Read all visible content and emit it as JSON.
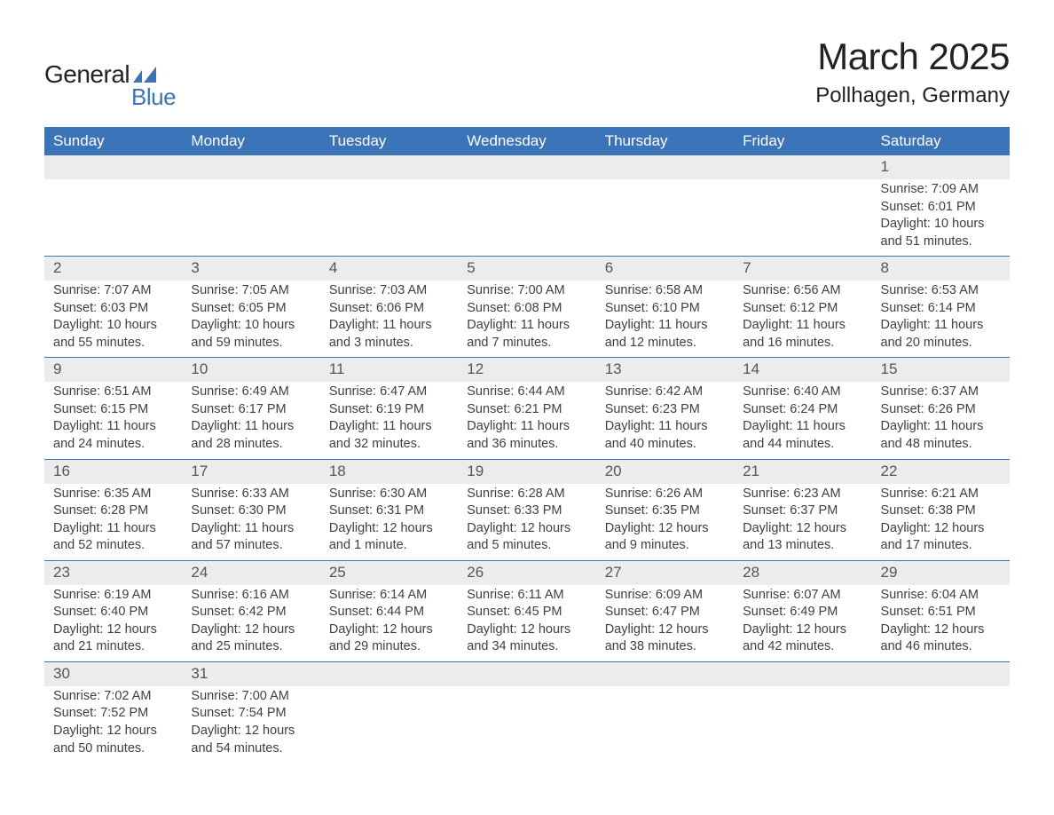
{
  "logo": {
    "text_general": "General",
    "text_blue": "Blue",
    "mark_color": "#3b74b9",
    "text_dark": "#222222"
  },
  "title": {
    "month": "March 2025",
    "location": "Pollhagen, Germany"
  },
  "styling": {
    "header_bg": "#3b74b9",
    "header_fg": "#ffffff",
    "row_border": "#3b74b9",
    "daynum_bg": "#ececec",
    "daynum_fg": "#555555",
    "body_fg": "#404040",
    "page_bg": "#ffffff",
    "font_family": "Arial, Helvetica, sans-serif",
    "month_title_fontsize": 42,
    "location_fontsize": 24,
    "th_fontsize": 17,
    "cell_fontsize": 14.5,
    "daynum_fontsize": 17
  },
  "weekdays": [
    "Sunday",
    "Monday",
    "Tuesday",
    "Wednesday",
    "Thursday",
    "Friday",
    "Saturday"
  ],
  "weeks": [
    [
      {
        "empty": true
      },
      {
        "empty": true
      },
      {
        "empty": true
      },
      {
        "empty": true
      },
      {
        "empty": true
      },
      {
        "empty": true
      },
      {
        "day": "1",
        "sunrise": "Sunrise: 7:09 AM",
        "sunset": "Sunset: 6:01 PM",
        "daylight": "Daylight: 10 hours and 51 minutes."
      }
    ],
    [
      {
        "day": "2",
        "sunrise": "Sunrise: 7:07 AM",
        "sunset": "Sunset: 6:03 PM",
        "daylight": "Daylight: 10 hours and 55 minutes."
      },
      {
        "day": "3",
        "sunrise": "Sunrise: 7:05 AM",
        "sunset": "Sunset: 6:05 PM",
        "daylight": "Daylight: 10 hours and 59 minutes."
      },
      {
        "day": "4",
        "sunrise": "Sunrise: 7:03 AM",
        "sunset": "Sunset: 6:06 PM",
        "daylight": "Daylight: 11 hours and 3 minutes."
      },
      {
        "day": "5",
        "sunrise": "Sunrise: 7:00 AM",
        "sunset": "Sunset: 6:08 PM",
        "daylight": "Daylight: 11 hours and 7 minutes."
      },
      {
        "day": "6",
        "sunrise": "Sunrise: 6:58 AM",
        "sunset": "Sunset: 6:10 PM",
        "daylight": "Daylight: 11 hours and 12 minutes."
      },
      {
        "day": "7",
        "sunrise": "Sunrise: 6:56 AM",
        "sunset": "Sunset: 6:12 PM",
        "daylight": "Daylight: 11 hours and 16 minutes."
      },
      {
        "day": "8",
        "sunrise": "Sunrise: 6:53 AM",
        "sunset": "Sunset: 6:14 PM",
        "daylight": "Daylight: 11 hours and 20 minutes."
      }
    ],
    [
      {
        "day": "9",
        "sunrise": "Sunrise: 6:51 AM",
        "sunset": "Sunset: 6:15 PM",
        "daylight": "Daylight: 11 hours and 24 minutes."
      },
      {
        "day": "10",
        "sunrise": "Sunrise: 6:49 AM",
        "sunset": "Sunset: 6:17 PM",
        "daylight": "Daylight: 11 hours and 28 minutes."
      },
      {
        "day": "11",
        "sunrise": "Sunrise: 6:47 AM",
        "sunset": "Sunset: 6:19 PM",
        "daylight": "Daylight: 11 hours and 32 minutes."
      },
      {
        "day": "12",
        "sunrise": "Sunrise: 6:44 AM",
        "sunset": "Sunset: 6:21 PM",
        "daylight": "Daylight: 11 hours and 36 minutes."
      },
      {
        "day": "13",
        "sunrise": "Sunrise: 6:42 AM",
        "sunset": "Sunset: 6:23 PM",
        "daylight": "Daylight: 11 hours and 40 minutes."
      },
      {
        "day": "14",
        "sunrise": "Sunrise: 6:40 AM",
        "sunset": "Sunset: 6:24 PM",
        "daylight": "Daylight: 11 hours and 44 minutes."
      },
      {
        "day": "15",
        "sunrise": "Sunrise: 6:37 AM",
        "sunset": "Sunset: 6:26 PM",
        "daylight": "Daylight: 11 hours and 48 minutes."
      }
    ],
    [
      {
        "day": "16",
        "sunrise": "Sunrise: 6:35 AM",
        "sunset": "Sunset: 6:28 PM",
        "daylight": "Daylight: 11 hours and 52 minutes."
      },
      {
        "day": "17",
        "sunrise": "Sunrise: 6:33 AM",
        "sunset": "Sunset: 6:30 PM",
        "daylight": "Daylight: 11 hours and 57 minutes."
      },
      {
        "day": "18",
        "sunrise": "Sunrise: 6:30 AM",
        "sunset": "Sunset: 6:31 PM",
        "daylight": "Daylight: 12 hours and 1 minute."
      },
      {
        "day": "19",
        "sunrise": "Sunrise: 6:28 AM",
        "sunset": "Sunset: 6:33 PM",
        "daylight": "Daylight: 12 hours and 5 minutes."
      },
      {
        "day": "20",
        "sunrise": "Sunrise: 6:26 AM",
        "sunset": "Sunset: 6:35 PM",
        "daylight": "Daylight: 12 hours and 9 minutes."
      },
      {
        "day": "21",
        "sunrise": "Sunrise: 6:23 AM",
        "sunset": "Sunset: 6:37 PM",
        "daylight": "Daylight: 12 hours and 13 minutes."
      },
      {
        "day": "22",
        "sunrise": "Sunrise: 6:21 AM",
        "sunset": "Sunset: 6:38 PM",
        "daylight": "Daylight: 12 hours and 17 minutes."
      }
    ],
    [
      {
        "day": "23",
        "sunrise": "Sunrise: 6:19 AM",
        "sunset": "Sunset: 6:40 PM",
        "daylight": "Daylight: 12 hours and 21 minutes."
      },
      {
        "day": "24",
        "sunrise": "Sunrise: 6:16 AM",
        "sunset": "Sunset: 6:42 PM",
        "daylight": "Daylight: 12 hours and 25 minutes."
      },
      {
        "day": "25",
        "sunrise": "Sunrise: 6:14 AM",
        "sunset": "Sunset: 6:44 PM",
        "daylight": "Daylight: 12 hours and 29 minutes."
      },
      {
        "day": "26",
        "sunrise": "Sunrise: 6:11 AM",
        "sunset": "Sunset: 6:45 PM",
        "daylight": "Daylight: 12 hours and 34 minutes."
      },
      {
        "day": "27",
        "sunrise": "Sunrise: 6:09 AM",
        "sunset": "Sunset: 6:47 PM",
        "daylight": "Daylight: 12 hours and 38 minutes."
      },
      {
        "day": "28",
        "sunrise": "Sunrise: 6:07 AM",
        "sunset": "Sunset: 6:49 PM",
        "daylight": "Daylight: 12 hours and 42 minutes."
      },
      {
        "day": "29",
        "sunrise": "Sunrise: 6:04 AM",
        "sunset": "Sunset: 6:51 PM",
        "daylight": "Daylight: 12 hours and 46 minutes."
      }
    ],
    [
      {
        "day": "30",
        "sunrise": "Sunrise: 7:02 AM",
        "sunset": "Sunset: 7:52 PM",
        "daylight": "Daylight: 12 hours and 50 minutes."
      },
      {
        "day": "31",
        "sunrise": "Sunrise: 7:00 AM",
        "sunset": "Sunset: 7:54 PM",
        "daylight": "Daylight: 12 hours and 54 minutes."
      },
      {
        "empty": true
      },
      {
        "empty": true
      },
      {
        "empty": true
      },
      {
        "empty": true
      },
      {
        "empty": true
      }
    ]
  ]
}
